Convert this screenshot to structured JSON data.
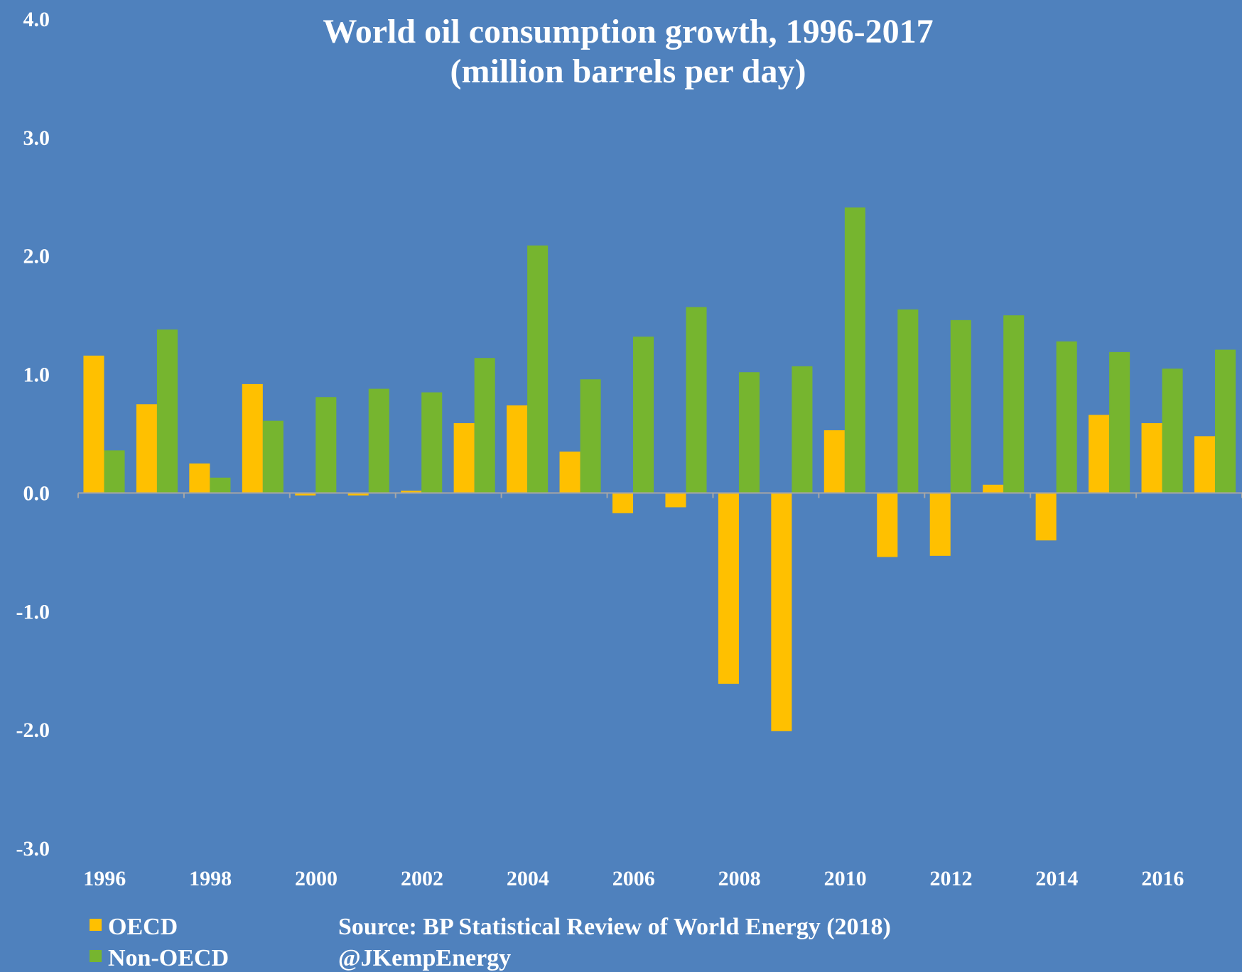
{
  "chart_data": {
    "type": "bar",
    "title": "World oil consumption growth, 1996-2017",
    "subtitle": "(million barrels per day)",
    "xlabel": "",
    "ylabel": "",
    "x": [
      1996,
      1997,
      1998,
      1999,
      2000,
      2001,
      2002,
      2003,
      2004,
      2005,
      2006,
      2007,
      2008,
      2009,
      2010,
      2011,
      2012,
      2013,
      2014,
      2015,
      2016,
      2017
    ],
    "x_tick_labels": [
      "1996",
      "1998",
      "2000",
      "2002",
      "2004",
      "2006",
      "2008",
      "2010",
      "2012",
      "2014",
      "2016"
    ],
    "y_tick_labels": [
      "4.0",
      "3.0",
      "2.0",
      "1.0",
      "0.0",
      "-1.0",
      "-2.0",
      "-3.0"
    ],
    "ylim": [
      -3.0,
      4.0
    ],
    "grid": false,
    "legend_position": "bottom-left",
    "series": [
      {
        "name": "OECD",
        "color": "#ffc000",
        "values": [
          1.16,
          0.75,
          0.25,
          0.92,
          -0.02,
          -0.02,
          0.02,
          0.59,
          0.74,
          0.35,
          -0.17,
          -0.12,
          -1.61,
          -2.01,
          0.53,
          -0.54,
          -0.53,
          0.07,
          -0.4,
          0.66,
          0.59,
          0.48
        ]
      },
      {
        "name": "Non-OECD",
        "color": "#76b52f",
        "values": [
          0.36,
          1.38,
          0.13,
          0.61,
          0.81,
          0.88,
          0.85,
          1.14,
          2.09,
          0.96,
          1.32,
          1.57,
          1.02,
          1.07,
          2.41,
          1.55,
          1.46,
          1.5,
          1.28,
          1.19,
          1.05,
          1.21
        ]
      }
    ],
    "annotations": [
      "Source: BP Statistical Review of World Energy (2018)",
      "@JKempEnergy"
    ],
    "colors": {
      "background": "#4f81bd",
      "axis": "#a6a6a6",
      "text": "#ffffff"
    }
  }
}
